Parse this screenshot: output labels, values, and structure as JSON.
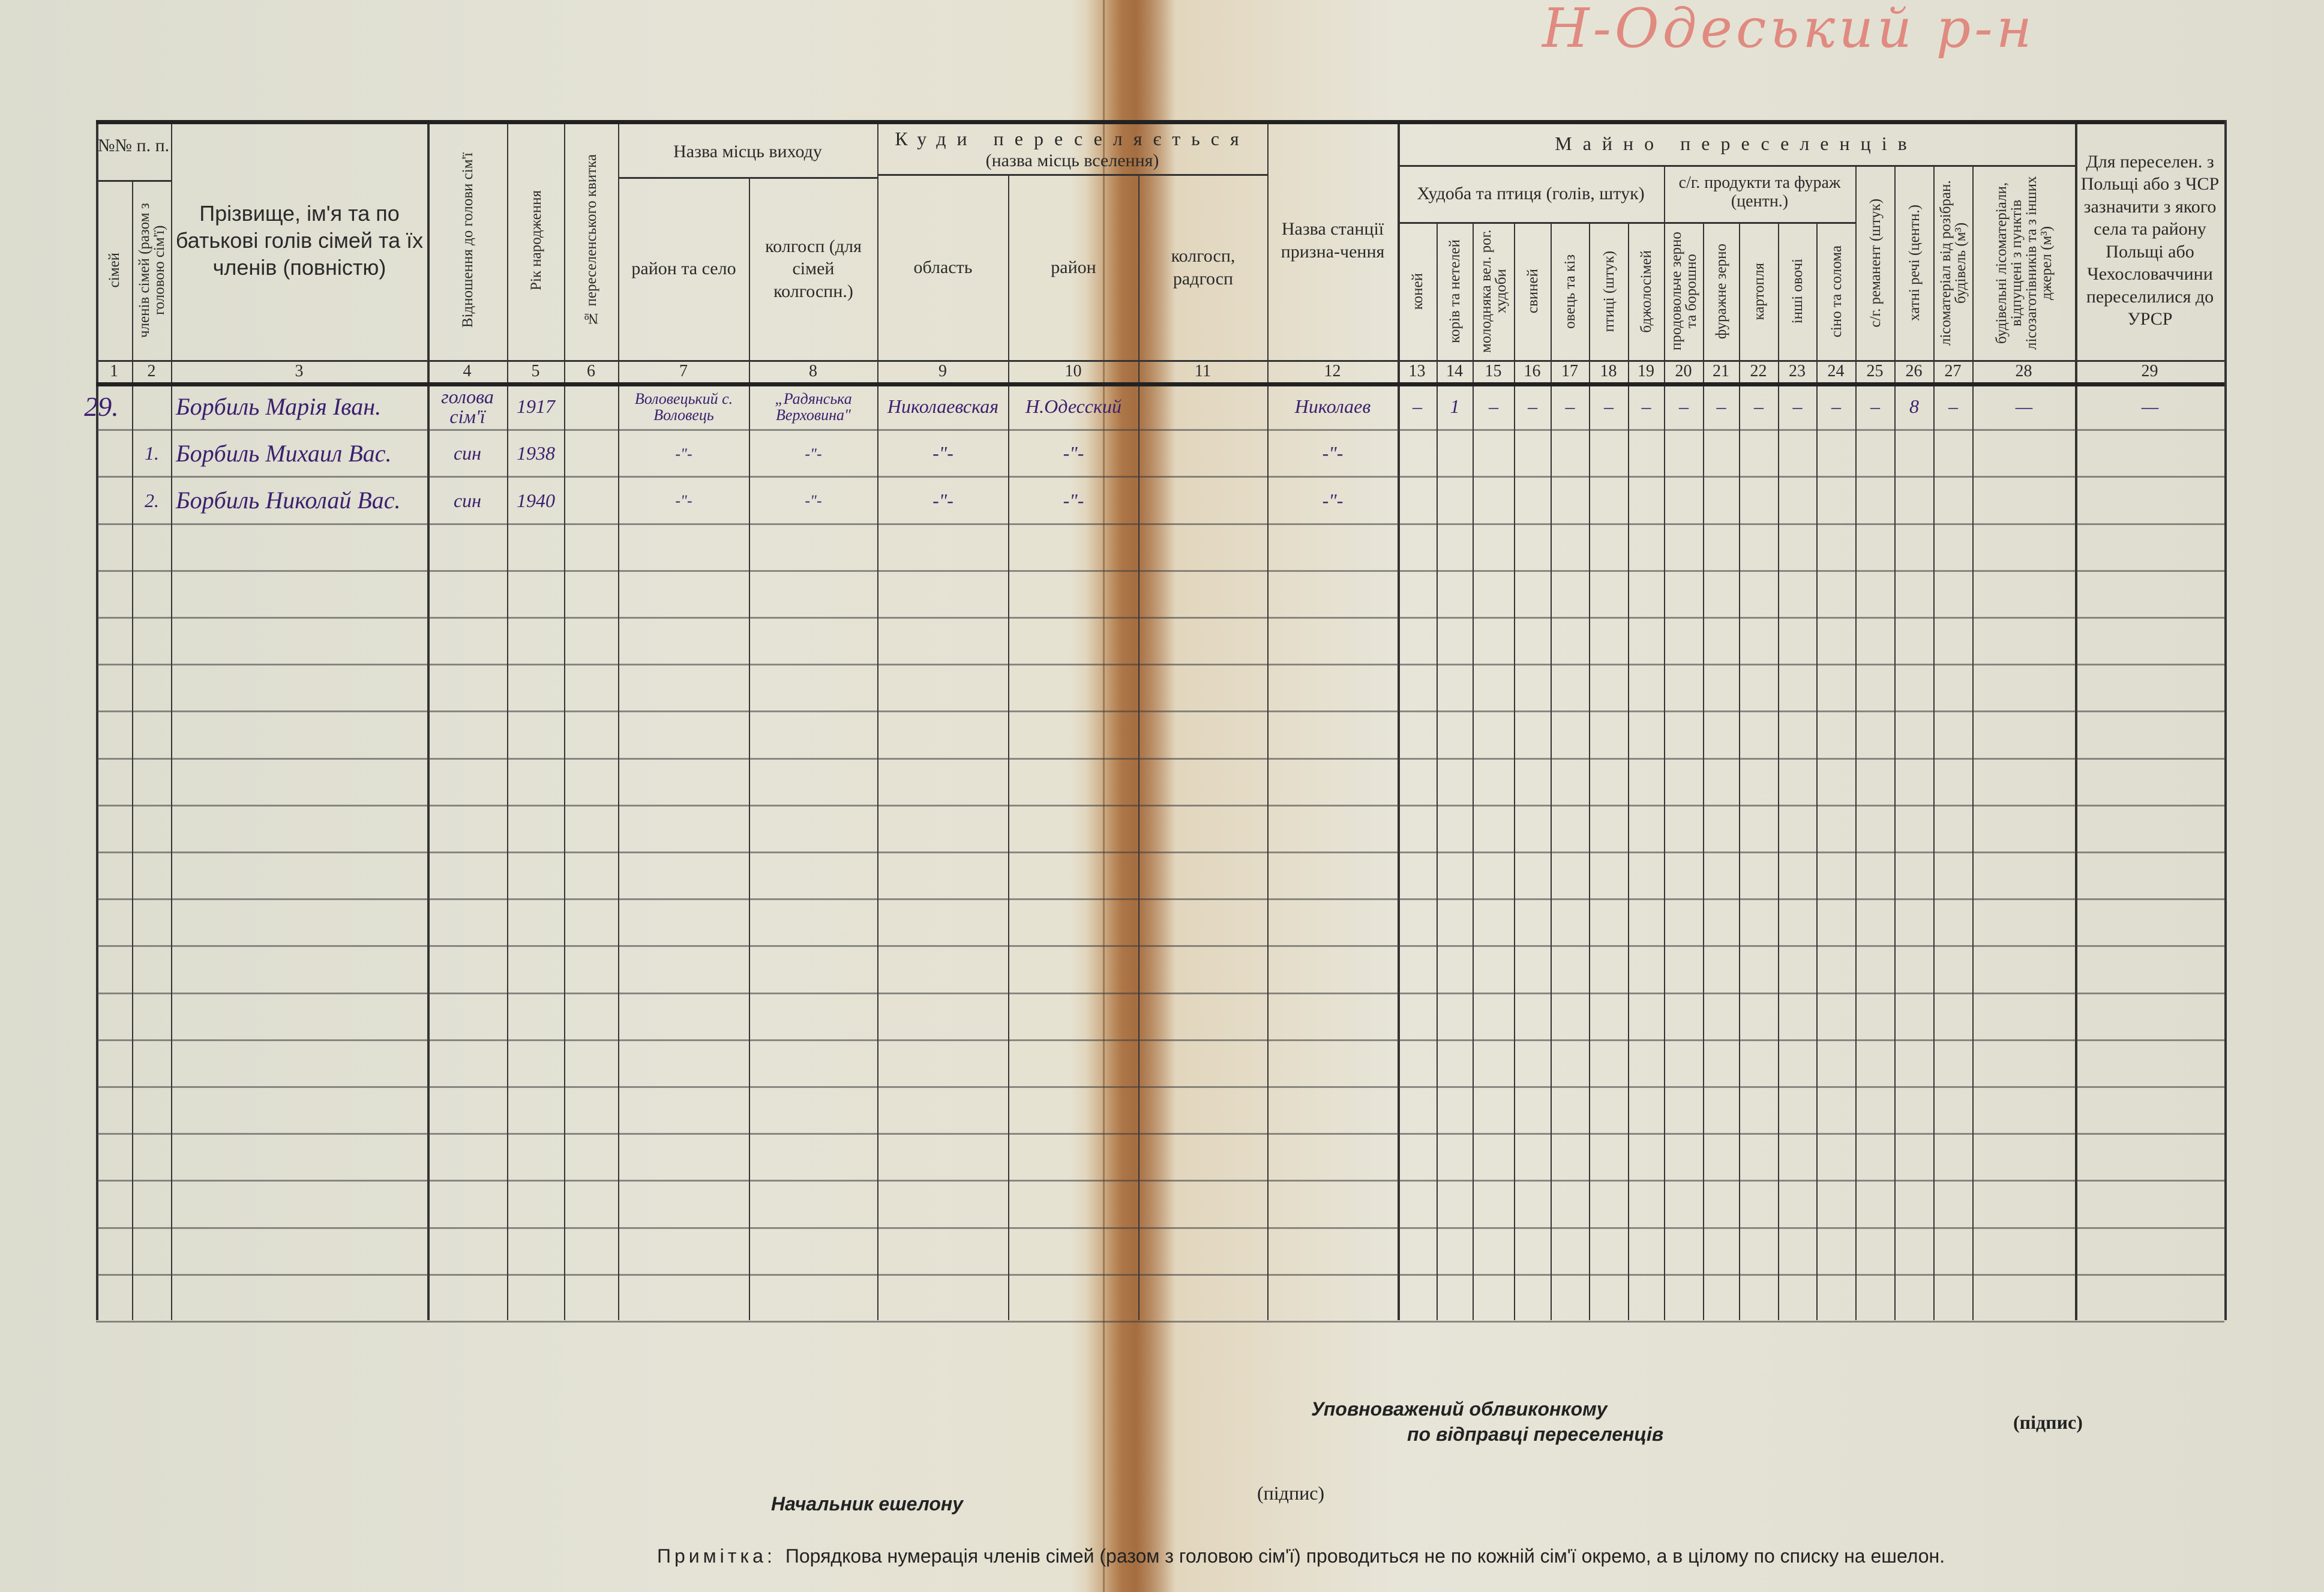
{
  "annotation_top": "Н-Одеський р-н",
  "groups": {
    "nn": "№№ п. п.",
    "exit": "Назва місць виходу",
    "dest": "Куди переселяється",
    "dest_sub": "(назва місць вселення)",
    "property": "Майно переселенців",
    "livestock": "Худоба та птиця (голів, штук)",
    "products": "с/г. продукти та фураж (центн.)"
  },
  "columns": [
    {
      "n": "1",
      "label": "сімей"
    },
    {
      "n": "2",
      "label": "членів сімей (разом з головою сім'ї)"
    },
    {
      "n": "3",
      "label": "Прізвище, ім'я та по батькові голів сімей та їх членів (повністю)"
    },
    {
      "n": "4",
      "label": "Відношення до голови сім'ї"
    },
    {
      "n": "5",
      "label": "Рік народження"
    },
    {
      "n": "6",
      "label": "№ переселенського квитка"
    },
    {
      "n": "7",
      "label": "район та село"
    },
    {
      "n": "8",
      "label": "колгосп (для сімей колгоспн.)"
    },
    {
      "n": "9",
      "label": "область"
    },
    {
      "n": "10",
      "label": "район"
    },
    {
      "n": "11",
      "label": "колгосп, радгосп"
    },
    {
      "n": "12",
      "label": "Назва станції призна-чення"
    },
    {
      "n": "13",
      "label": "коней"
    },
    {
      "n": "14",
      "label": "корів та нетелей"
    },
    {
      "n": "15",
      "label": "молодняка вел. рог. худоби"
    },
    {
      "n": "16",
      "label": "свиней"
    },
    {
      "n": "17",
      "label": "овець та кіз"
    },
    {
      "n": "18",
      "label": "птиці (штук)"
    },
    {
      "n": "19",
      "label": "бджолосімей"
    },
    {
      "n": "20",
      "label": "продовольче зерно та борошно"
    },
    {
      "n": "21",
      "label": "фуражне зерно"
    },
    {
      "n": "22",
      "label": "картопля"
    },
    {
      "n": "23",
      "label": "інші овочі"
    },
    {
      "n": "24",
      "label": "сіно та солома"
    },
    {
      "n": "25",
      "label": "с/г. реманент (штук)"
    },
    {
      "n": "26",
      "label": "хатні речі (центн.)"
    },
    {
      "n": "27",
      "label": "лісоматеріал від розібран. будівель (м³)"
    },
    {
      "n": "28",
      "label": "будівельні лісоматеріали, відпущені з пунктів лісозаготівників та з інших джерел (м³)"
    },
    {
      "n": "29",
      "label": "Для переселен. з Польщі або з ЧСР зазначити з якого села та району Польщі або Чехословаччини переселилися до УРСР"
    }
  ],
  "rows": [
    {
      "cells": [
        "29.",
        "",
        "Борбиль Марія Іван.",
        "голова сім'ї",
        "1917",
        "",
        "Воловецький с. Воловець",
        "„Радянська Верховина\"",
        "Николаевская",
        "Н.Одесский",
        "",
        "Николаев",
        "–",
        "1",
        "–",
        "–",
        "–",
        "–",
        "–",
        "–",
        "–",
        "–",
        "–",
        "–",
        "–",
        "8",
        "–",
        "—",
        "—"
      ]
    },
    {
      "cells": [
        "",
        "1.",
        "Борбиль Михаил Вас.",
        "син",
        "1938",
        "",
        "-\"-",
        "-\"-",
        "-\"-",
        "-\"-",
        "",
        "-\"-",
        "",
        "",
        "",
        "",
        "",
        "",
        "",
        "",
        "",
        "",
        "",
        "",
        "",
        "",
        "",
        "",
        ""
      ]
    },
    {
      "cells": [
        "",
        "2.",
        "Борбиль Николай Вас.",
        "син",
        "1940",
        "",
        "-\"-",
        "-\"-",
        "-\"-",
        "-\"-",
        "",
        "-\"-",
        "",
        "",
        "",
        "",
        "",
        "",
        "",
        "",
        "",
        "",
        "",
        "",
        "",
        "",
        "",
        "",
        ""
      ]
    }
  ],
  "footer": {
    "official_line1": "Уповноважений облвиконкому",
    "official_line2": "по відправці переселенців",
    "official_signature": "(підпис)",
    "echelon_chief": "Начальник ешелону",
    "echelon_signature": "(підпис)",
    "note_label": "Примітка:",
    "note_text": "Порядкова нумерація членів сімей (разом з головою сім'ї) проводиться не по кожній сім'ї окремо, а в цілому по списку на ешелон."
  }
}
